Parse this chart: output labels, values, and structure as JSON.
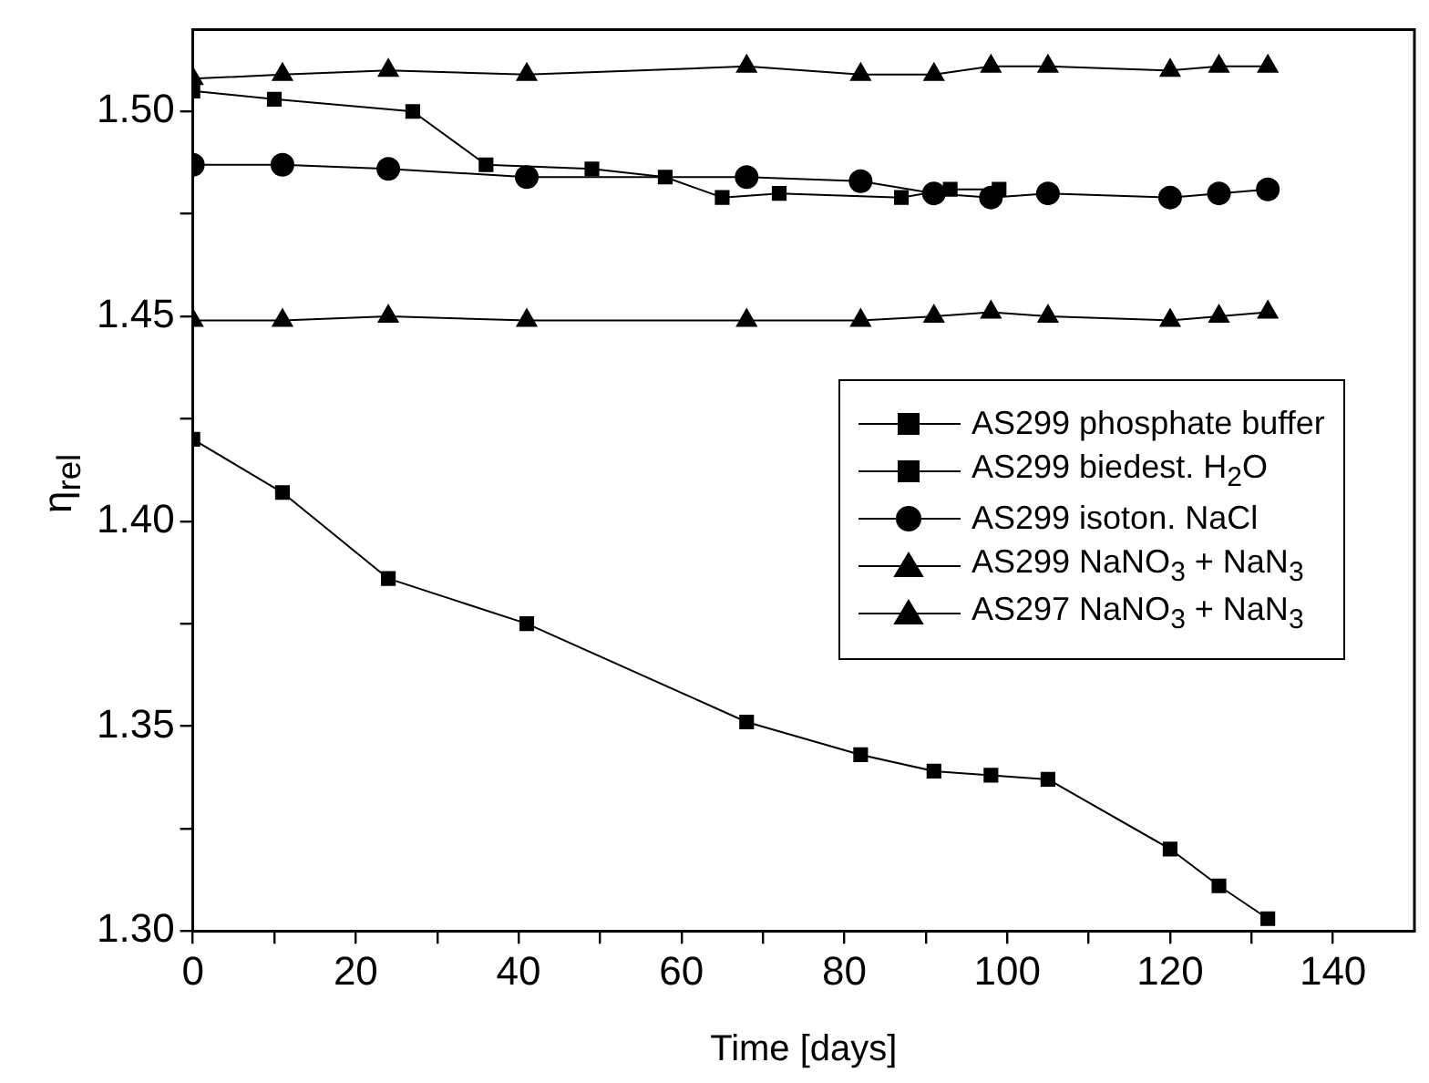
{
  "chart_data": {
    "type": "line",
    "xlabel": "Time [days]",
    "ylabel": "η$_{rel}$",
    "xlim": [
      0,
      150
    ],
    "ylim": [
      1.3,
      1.52
    ],
    "xticks": [
      0,
      {
        "value": 10,
        "label": null
      },
      20,
      {
        "value": 30,
        "label": null
      },
      40,
      {
        "value": 50,
        "label": null
      },
      60,
      {
        "value": 70,
        "label": null
      },
      80,
      {
        "value": 90,
        "label": null
      },
      100,
      {
        "value": 110,
        "label": null
      },
      120,
      {
        "value": 130,
        "label": null
      },
      140
    ],
    "yticks": [
      {
        "value": 1.3,
        "label": "1.30"
      },
      {
        "value": 1.325,
        "label": null
      },
      1.35,
      {
        "value": 1.375,
        "label": null
      },
      {
        "value": 1.4,
        "label": "1.40"
      },
      {
        "value": 1.425,
        "label": null
      },
      1.45,
      {
        "value": 1.475,
        "label": null
      },
      {
        "value": 1.5,
        "label": "1.50"
      }
    ],
    "grid": false,
    "legend": "right",
    "line_style": "solid",
    "series": [
      {
        "name": "AS299 phosphate buffer",
        "color": "#000000",
        "marker": "square",
        "x": [
          0,
          10,
          27,
          36,
          49,
          58,
          65,
          72,
          87,
          93,
          99
        ],
        "values": [
          1.505,
          1.503,
          1.5,
          1.487,
          1.486,
          1.484,
          1.479,
          1.48,
          1.479,
          1.481,
          1.481
        ]
      },
      {
        "name": "AS299 biedest. H$_{2}$O",
        "color": "#000000",
        "marker": "square",
        "x": [
          0,
          11,
          24,
          41,
          68,
          82,
          91,
          98,
          105,
          120,
          126,
          132
        ],
        "values": [
          1.42,
          1.407,
          1.386,
          1.375,
          1.351,
          1.343,
          1.339,
          1.338,
          1.337,
          1.32,
          1.311,
          1.303
        ]
      },
      {
        "name": "AS299 isoton. NaCl",
        "color": "#000000",
        "marker": "circle",
        "x": [
          0,
          11,
          24,
          41,
          68,
          82,
          91,
          98,
          105,
          120,
          126,
          132
        ],
        "values": [
          1.487,
          1.487,
          1.486,
          1.484,
          1.484,
          1.483,
          1.48,
          1.479,
          1.48,
          1.479,
          1.48,
          1.481
        ]
      },
      {
        "name": "AS299 NaNO$_{3}$ + NaN$_{3}$",
        "color": "#000000",
        "marker": "triangle",
        "x": [
          0,
          11,
          24,
          41,
          68,
          82,
          91,
          98,
          105,
          120,
          126,
          132
        ],
        "values": [
          1.508,
          1.509,
          1.51,
          1.509,
          1.511,
          1.509,
          1.509,
          1.511,
          1.511,
          1.51,
          1.511,
          1.511
        ]
      },
      {
        "name": "AS297 NaNO$_{3}$ + NaN$_{3}$",
        "color": "#000000",
        "marker": "triangle",
        "x": [
          0,
          11,
          24,
          41,
          68,
          82,
          91,
          98,
          105,
          120,
          126,
          132
        ],
        "values": [
          1.449,
          1.449,
          1.45,
          1.449,
          1.449,
          1.449,
          1.45,
          1.451,
          1.45,
          1.449,
          1.45,
          1.451
        ]
      }
    ]
  }
}
